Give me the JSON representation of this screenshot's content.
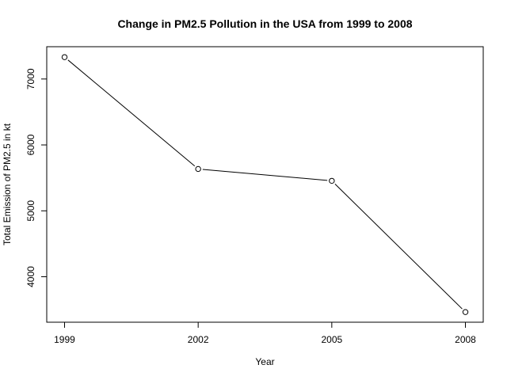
{
  "chart_data": {
    "type": "line",
    "title": "Change in PM2.5 Pollution in the USA from 1999 to 2008",
    "xlabel": "Year",
    "ylabel": "Total Emission of PM2.5 in kt",
    "x": [
      1999,
      2002,
      2005,
      2008
    ],
    "xticks": [
      "1999",
      "2002",
      "2005",
      "2008"
    ],
    "yticks": [
      "4000",
      "5000",
      "6000",
      "7000"
    ],
    "series": [
      {
        "values": [
          7332,
          5635,
          5455,
          3464
        ]
      }
    ],
    "xlim": [
      1998.6,
      2008.4
    ],
    "ylim": [
      3310,
      7490
    ],
    "grid": false,
    "legend": "none",
    "line_color": "#000000",
    "marker": "open-circle"
  }
}
